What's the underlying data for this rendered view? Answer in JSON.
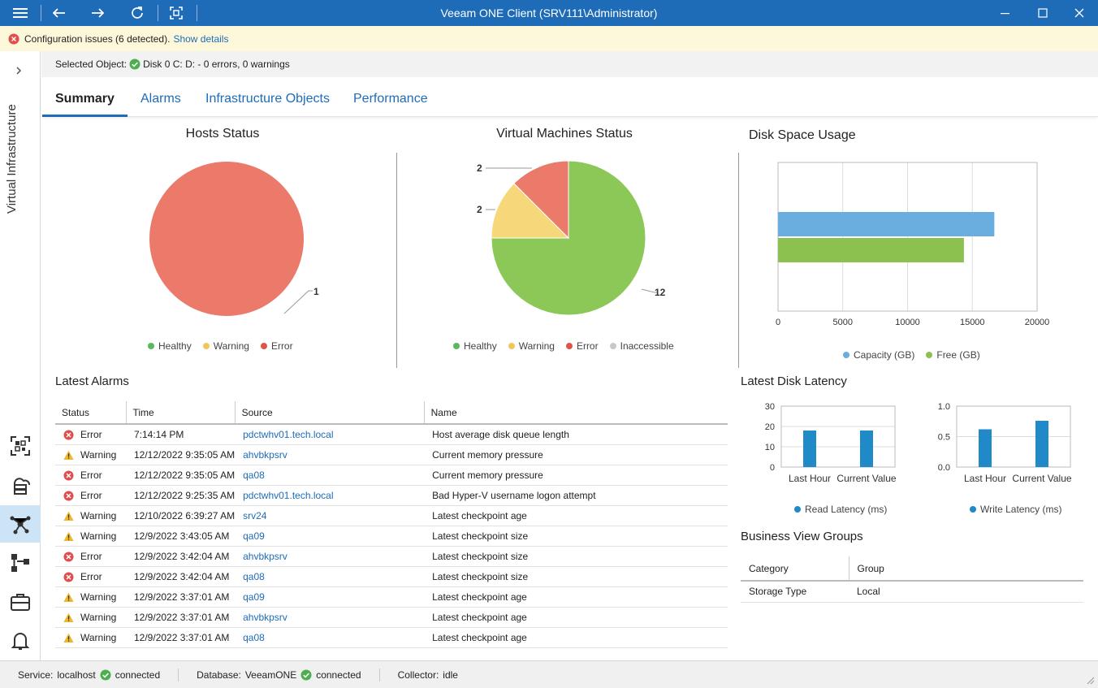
{
  "window": {
    "title": "Veeam ONE Client (SRV111\\Administrator)"
  },
  "issues": {
    "text": "Configuration issues (6 detected).",
    "link": "Show details"
  },
  "sidebar": {
    "label": "Virtual Infrastructure"
  },
  "selected": {
    "label": "Selected Object:",
    "value": "Disk 0 C: D: - 0 errors, 0 warnings"
  },
  "tabs": [
    {
      "label": "Summary"
    },
    {
      "label": "Alarms"
    },
    {
      "label": "Infrastructure Objects"
    },
    {
      "label": "Performance"
    }
  ],
  "colors": {
    "healthy": "#8cc858",
    "warning": "#f6d77a",
    "error": "#ec7a6a",
    "inaccessible": "#c8c8c8",
    "capacity": "#6aaee0",
    "free": "#8cc150",
    "latency": "#1f8ac7",
    "accent": "#1e6cb8"
  },
  "hosts_status": {
    "title": "Hosts Status",
    "legend": [
      "Healthy",
      "Warning",
      "Error"
    ]
  },
  "vm_status": {
    "title": "Virtual Machines Status",
    "legend": [
      "Healthy",
      "Warning",
      "Error",
      "Inaccessible"
    ]
  },
  "disk_space": {
    "title": "Disk Space Usage",
    "legend": [
      "Capacity (GB)",
      "Free (GB)"
    ]
  },
  "disk_latency": {
    "title": "Latest Disk Latency"
  },
  "alarms": {
    "title": "Latest Alarms",
    "columns": [
      "Status",
      "Time",
      "Source",
      "Name"
    ],
    "rows": [
      {
        "status": "Error",
        "time": "7:14:14 PM",
        "source": "pdctwhv01.tech.local",
        "name": "Host average disk queue length"
      },
      {
        "status": "Warning",
        "time": "12/12/2022 9:35:05 AM",
        "source": "ahvbkpsrv",
        "name": "Current memory pressure"
      },
      {
        "status": "Error",
        "time": "12/12/2022 9:35:05 AM",
        "source": "qa08",
        "name": "Current memory pressure"
      },
      {
        "status": "Error",
        "time": "12/12/2022 9:25:35 AM",
        "source": "pdctwhv01.tech.local",
        "name": "Bad Hyper-V username logon attempt"
      },
      {
        "status": "Warning",
        "time": "12/10/2022 6:39:27 AM",
        "source": "srv24",
        "name": "Latest checkpoint age"
      },
      {
        "status": "Warning",
        "time": "12/9/2022 3:43:05 AM",
        "source": "qa09",
        "name": "Latest checkpoint size"
      },
      {
        "status": "Error",
        "time": "12/9/2022 3:42:04 AM",
        "source": "ahvbkpsrv",
        "name": "Latest checkpoint size"
      },
      {
        "status": "Error",
        "time": "12/9/2022 3:42:04 AM",
        "source": "qa08",
        "name": "Latest checkpoint size"
      },
      {
        "status": "Warning",
        "time": "12/9/2022 3:37:01 AM",
        "source": "qa09",
        "name": "Latest checkpoint age"
      },
      {
        "status": "Warning",
        "time": "12/9/2022 3:37:01 AM",
        "source": "ahvbkpsrv",
        "name": "Latest checkpoint age"
      },
      {
        "status": "Warning",
        "time": "12/9/2022 3:37:01 AM",
        "source": "qa08",
        "name": "Latest checkpoint age"
      }
    ]
  },
  "business_view": {
    "title": "Business View Groups",
    "columns": [
      "Category",
      "Group"
    ],
    "rows": [
      {
        "category": "Storage Type",
        "group": "Local"
      }
    ]
  },
  "statusbar": {
    "service_label": "Service:",
    "service_value": "localhost",
    "service_state": "connected",
    "database_label": "Database:",
    "database_value": "VeeamONE",
    "database_state": "connected",
    "collector_label": "Collector:",
    "collector_value": "idle"
  },
  "chart_data": [
    {
      "type": "pie",
      "title": "Hosts Status",
      "categories": [
        "Healthy",
        "Warning",
        "Error"
      ],
      "values": [
        0,
        0,
        1
      ]
    },
    {
      "type": "pie",
      "title": "Virtual Machines Status",
      "categories": [
        "Healthy",
        "Warning",
        "Error",
        "Inaccessible"
      ],
      "values": [
        12,
        2,
        2,
        0
      ]
    },
    {
      "type": "bar",
      "orientation": "horizontal",
      "title": "Disk Space Usage",
      "series": [
        {
          "name": "Capacity (GB)",
          "values": [
            16700
          ]
        },
        {
          "name": "Free (GB)",
          "values": [
            14350
          ]
        }
      ],
      "xlim": [
        0,
        20000
      ],
      "xticks": [
        "0",
        "5000",
        "10000",
        "15000",
        "20000"
      ],
      "grid": true,
      "legend": "bottom"
    },
    {
      "type": "bar",
      "title": "",
      "categories": [
        "Last Hour",
        "Current Value"
      ],
      "series": [
        {
          "name": "Read Latency (ms)",
          "values": [
            18,
            18
          ]
        }
      ],
      "ylim": [
        0,
        30
      ],
      "yticks": [
        "0",
        "10",
        "20",
        "30"
      ],
      "legend": "bottom"
    },
    {
      "type": "bar",
      "title": "",
      "categories": [
        "Last Hour",
        "Current Value"
      ],
      "series": [
        {
          "name": "Write Latency (ms)",
          "values": [
            0.62,
            0.76
          ]
        }
      ],
      "ylim": [
        0,
        1
      ],
      "yticks": [
        "0.0",
        "0.5",
        "1.0"
      ],
      "legend": "bottom"
    }
  ]
}
